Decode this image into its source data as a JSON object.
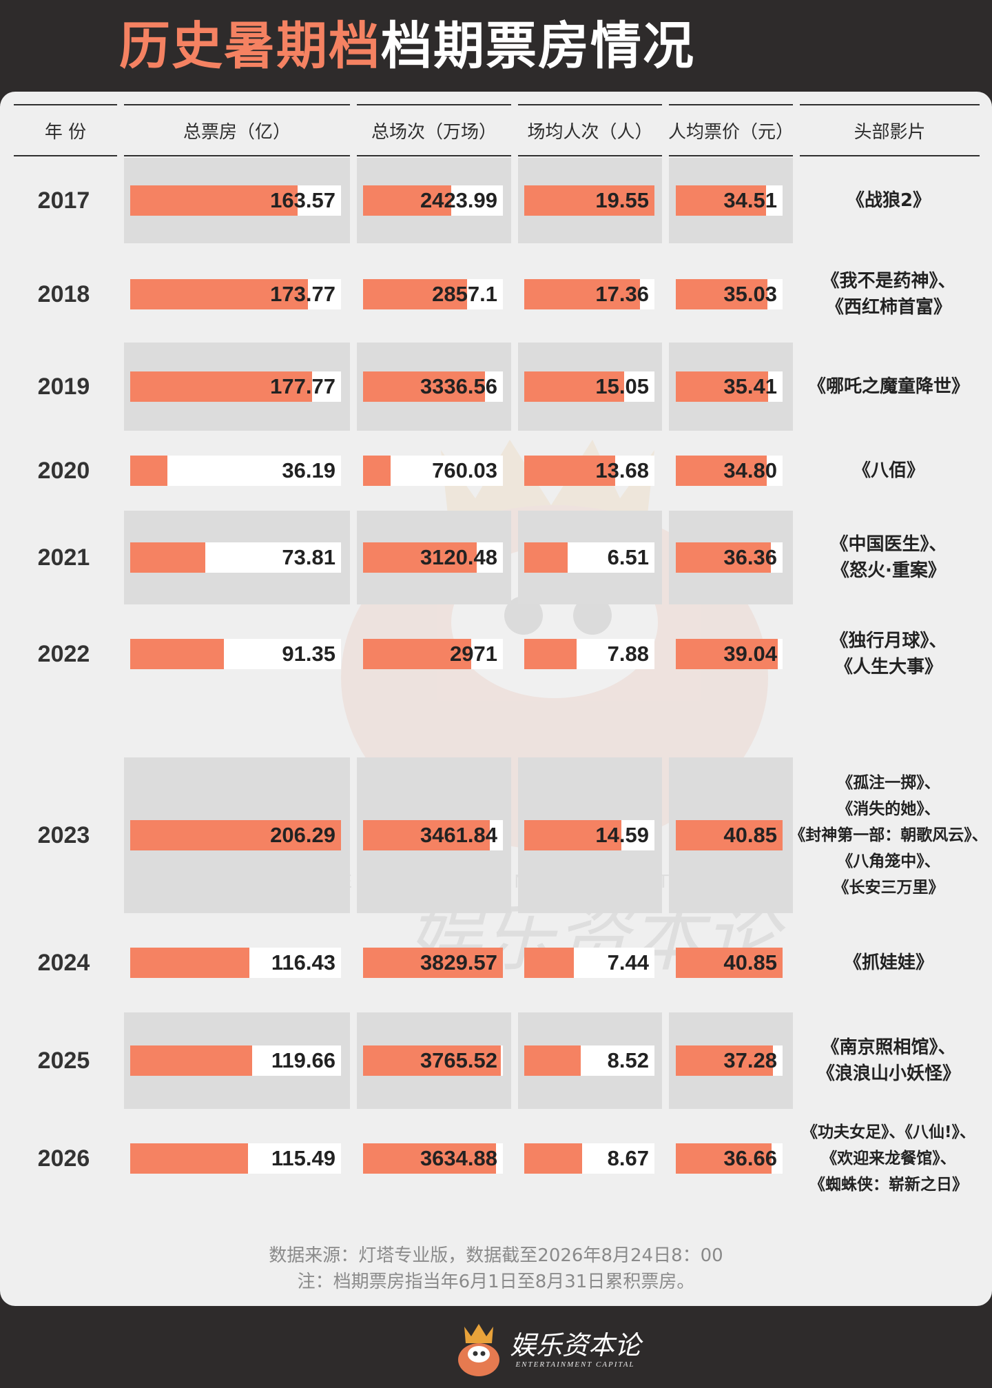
{
  "title": {
    "accent": "历史暑期档",
    "rest": "档期票房情况"
  },
  "headers": [
    "年 份",
    "总票房（亿）",
    "总场次（万场）",
    "场均人次（人）",
    "人均票价（元）",
    "头部影片"
  ],
  "chart_data": {
    "type": "table",
    "max": {
      "box_office": 206.29,
      "screenings": 3829.57,
      "attendance": 19.55,
      "ticket_price": 40.85
    },
    "rows": [
      {
        "year": "2017",
        "box_office": "163.57",
        "screenings": "2423.99",
        "attendance": "19.55",
        "ticket_price": "34.51",
        "films": [
          "《战狼2》"
        ]
      },
      {
        "year": "2018",
        "box_office": "173.77",
        "screenings": "2857.1",
        "attendance": "17.36",
        "ticket_price": "35.03",
        "films": [
          "《我不是药神》、",
          "《西红柿首富》"
        ]
      },
      {
        "year": "2019",
        "box_office": "177.77",
        "screenings": "3336.56",
        "attendance": "15.05",
        "ticket_price": "35.41",
        "films": [
          "《哪吒之魔童降世》"
        ]
      },
      {
        "year": "2020",
        "box_office": "36.19",
        "screenings": "760.03",
        "attendance": "13.68",
        "ticket_price": "34.80",
        "films": [
          "《八佰》"
        ]
      },
      {
        "year": "2021",
        "box_office": "73.81",
        "screenings": "3120.48",
        "attendance": "6.51",
        "ticket_price": "36.36",
        "films": [
          "《中国医生》、",
          "《怒火·重案》"
        ]
      },
      {
        "year": "2022",
        "box_office": "91.35",
        "screenings": "2971",
        "attendance": "7.88",
        "ticket_price": "39.04",
        "films": [
          "《独行月球》、",
          "《人生大事》"
        ]
      },
      {
        "year": "2023",
        "box_office": "206.29",
        "screenings": "3461.84",
        "attendance": "14.59",
        "ticket_price": "40.85",
        "films": [
          "《孤注一掷》、",
          "《消失的她》、",
          "《封神第一部：朝歌风云》、",
          "《八角笼中》、",
          "《长安三万里》"
        ]
      },
      {
        "year": "2024",
        "box_office": "116.43",
        "screenings": "3829.57",
        "attendance": "7.44",
        "ticket_price": "40.85",
        "films": [
          "《抓娃娃》"
        ]
      },
      {
        "year": "2025",
        "box_office": "119.66",
        "screenings": "3765.52",
        "attendance": "8.52",
        "ticket_price": "37.28",
        "films": [
          "《南京照相馆》、",
          "《浪浪山小妖怪》"
        ]
      },
      {
        "year": "2026",
        "box_office": "115.49",
        "screenings": "3634.88",
        "attendance": "8.67",
        "ticket_price": "36.66",
        "films": [
          "《功夫女足》、《八仙!》、",
          "《欢迎来龙餐馆》、",
          "《蜘蛛侠：崭新之日》"
        ]
      }
    ]
  },
  "notes": {
    "source": "数据来源：灯塔专业版，数据截至2026年8月24日8：00",
    "definition": "注：档期票房指当年6月1日至8月31日累积票房。"
  },
  "watermark": {
    "cn": "娱乐资本论",
    "en": "ENTERTAINMENT CAPITAL"
  },
  "footer": {
    "cn": "娱乐资本论",
    "en": "ENTERTAINMENT CAPITAL"
  },
  "colors": {
    "bar": "#f58262",
    "background": "#2e2b2b",
    "panel": "#efefef",
    "shade": "#dcdcdc"
  }
}
